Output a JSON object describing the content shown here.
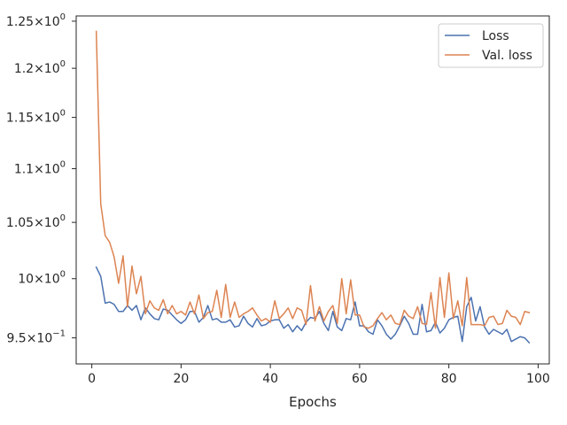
{
  "chart_data": {
    "type": "line",
    "title": "",
    "xlabel": "Epochs",
    "ylabel": "",
    "xlim": [
      -3.5,
      102.5
    ],
    "ylim": [
      0.9288,
      1.2557
    ],
    "y_scale": "log",
    "grid": false,
    "legend_position": "top-right",
    "x_ticks": [
      0,
      20,
      40,
      60,
      80,
      100
    ],
    "x_tick_labels": [
      "0",
      "20",
      "40",
      "60",
      "80",
      "100"
    ],
    "y_ticks": [
      0.95,
      1.0,
      1.05,
      1.1,
      1.15,
      1.2,
      1.25
    ],
    "y_tick_labels": [
      {
        "mantissa": "9.5",
        "exp": "−1"
      },
      {
        "mantissa": "10",
        "exp": "0"
      },
      {
        "mantissa": "1.05",
        "exp": "0"
      },
      {
        "mantissa": "1.1",
        "exp": "0"
      },
      {
        "mantissa": "1.15",
        "exp": "0"
      },
      {
        "mantissa": "1.2",
        "exp": "0"
      },
      {
        "mantissa": "1.25",
        "exp": "0"
      }
    ],
    "x": [
      1,
      2,
      3,
      4,
      5,
      6,
      7,
      8,
      9,
      10,
      11,
      12,
      13,
      14,
      15,
      16,
      17,
      18,
      19,
      20,
      21,
      22,
      23,
      24,
      25,
      26,
      27,
      28,
      29,
      30,
      31,
      32,
      33,
      34,
      35,
      36,
      37,
      38,
      39,
      40,
      41,
      42,
      43,
      44,
      45,
      46,
      47,
      48,
      49,
      50,
      51,
      52,
      53,
      54,
      55,
      56,
      57,
      58,
      59,
      60,
      61,
      62,
      63,
      64,
      65,
      66,
      67,
      68,
      69,
      70,
      71,
      72,
      73,
      74,
      75,
      76,
      77,
      78,
      79,
      80,
      81,
      82,
      83,
      84,
      85,
      86,
      87,
      88,
      89,
      90,
      91,
      92,
      93,
      94,
      95,
      96,
      97,
      98
    ],
    "series": [
      {
        "name": "Loss",
        "color": "#4c72b0",
        "values": [
          1.01,
          1.002,
          0.979,
          0.98,
          0.978,
          0.972,
          0.972,
          0.977,
          0.973,
          0.977,
          0.965,
          0.975,
          0.97,
          0.966,
          0.965,
          0.974,
          0.973,
          0.969,
          0.965,
          0.962,
          0.965,
          0.972,
          0.972,
          0.963,
          0.967,
          0.977,
          0.965,
          0.966,
          0.963,
          0.963,
          0.965,
          0.959,
          0.96,
          0.968,
          0.962,
          0.959,
          0.966,
          0.96,
          0.961,
          0.964,
          0.965,
          0.965,
          0.958,
          0.961,
          0.955,
          0.96,
          0.956,
          0.963,
          0.967,
          0.966,
          0.972,
          0.962,
          0.956,
          0.972,
          0.959,
          0.956,
          0.966,
          0.965,
          0.98,
          0.96,
          0.96,
          0.955,
          0.953,
          0.965,
          0.96,
          0.953,
          0.949,
          0.953,
          0.96,
          0.968,
          0.962,
          0.953,
          0.953,
          0.978,
          0.955,
          0.956,
          0.963,
          0.954,
          0.958,
          0.965,
          0.967,
          0.968,
          0.947,
          0.976,
          0.984,
          0.964,
          0.976,
          0.959,
          0.953,
          0.957,
          0.955,
          0.953,
          0.957,
          0.947,
          0.949,
          0.951,
          0.95,
          0.946
        ]
      },
      {
        "name": "Val. loss",
        "color": "#dd8452",
        "values": [
          1.239,
          1.067,
          1.038,
          1.032,
          1.019,
          0.996,
          1.02,
          0.976,
          1.011,
          0.987,
          1.002,
          0.97,
          0.981,
          0.975,
          0.973,
          0.982,
          0.97,
          0.977,
          0.97,
          0.972,
          0.969,
          0.98,
          0.97,
          0.986,
          0.966,
          0.971,
          0.972,
          0.99,
          0.967,
          0.995,
          0.967,
          0.98,
          0.967,
          0.97,
          0.972,
          0.975,
          0.969,
          0.964,
          0.966,
          0.963,
          0.981,
          0.966,
          0.97,
          0.975,
          0.966,
          0.975,
          0.973,
          0.961,
          0.994,
          0.964,
          0.976,
          0.964,
          0.972,
          0.977,
          0.962,
          1.0,
          0.97,
          0.999,
          0.969,
          0.969,
          0.959,
          0.958,
          0.96,
          0.966,
          0.971,
          0.965,
          0.969,
          0.962,
          0.961,
          0.973,
          0.968,
          0.966,
          0.976,
          0.962,
          0.961,
          0.988,
          0.958,
          1.001,
          0.967,
          1.005,
          0.966,
          0.981,
          0.96,
          1.001,
          0.961,
          0.961,
          0.961,
          0.96,
          0.967,
          0.968,
          0.961,
          0.962,
          0.973,
          0.968,
          0.967,
          0.961,
          0.972,
          0.971
        ]
      }
    ]
  }
}
